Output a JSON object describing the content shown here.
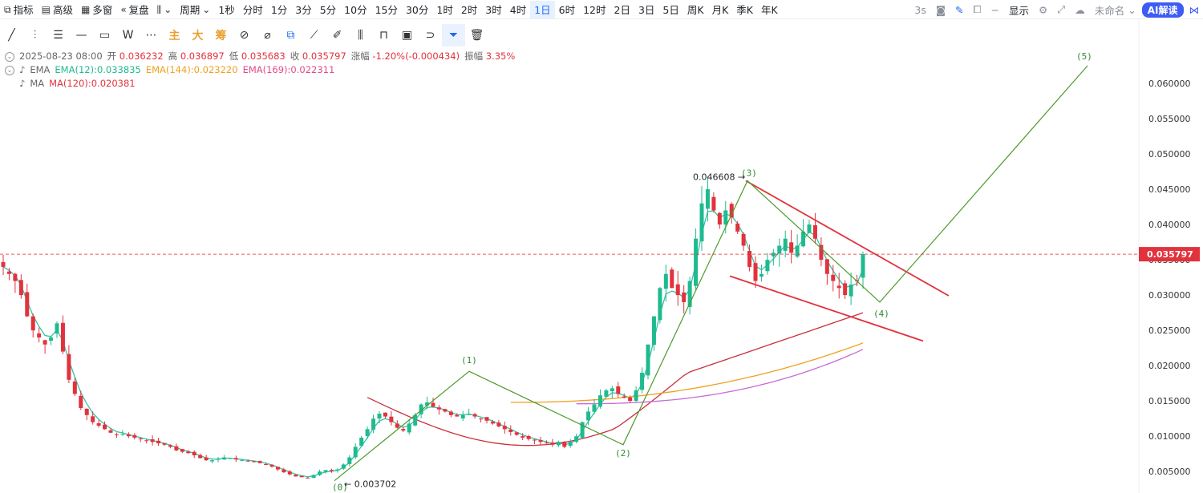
{
  "toolbar": {
    "indicators": "指标",
    "advanced": "高级",
    "multi_window": "多窗",
    "replay": "复盘",
    "period": "周期",
    "periods": [
      "1秒",
      "分时",
      "1分",
      "3分",
      "5分",
      "10分",
      "15分",
      "30分",
      "1时",
      "2时",
      "3时",
      "4时",
      "1日",
      "6时",
      "12时",
      "2日",
      "3日",
      "5日",
      "周K",
      "月K",
      "季K",
      "年K"
    ],
    "active_period": "1日",
    "refresh": "3s",
    "display": "显示",
    "unnamed": "未命名",
    "ai": "AI解读"
  },
  "drawtools": {
    "main": "主",
    "big": "大",
    "chips": "筹"
  },
  "info": {
    "date": "2025-08-23 08:00",
    "open_label": "开",
    "open": "0.036232",
    "high_label": "高",
    "high": "0.036897",
    "low_label": "低",
    "low": "0.035683",
    "close_label": "收",
    "close": "0.035797",
    "change_label": "涨幅",
    "change": "-1.20%(-0.000434)",
    "amp_label": "振幅",
    "amp": "3.35%",
    "ema_label": "EMA",
    "ema12": "EMA(12):0.033835",
    "ema144": "EMA(144):0.023220",
    "ema169": "EMA(169):0.022311",
    "ma_label": "MA",
    "ma120": "MA(120):0.020381"
  },
  "colors": {
    "up": "#1fba8f",
    "down": "#e2323c",
    "ema12": "#35c3a6",
    "ema144": "#f0a020",
    "ema169": "#c86ad8",
    "ma120": "#c8323c",
    "wave": "#4c9a2a",
    "channel": "#e2323c",
    "price_tag": "#e2323c"
  },
  "chart_data": {
    "type": "candlestick",
    "ylim": [
      0.0023,
      0.065
    ],
    "yticks": [
      "0.060000",
      "0.055000",
      "0.050000",
      "0.045000",
      "0.040000",
      "0.035000",
      "0.030000",
      "0.025000",
      "0.020000",
      "0.015000",
      "0.010000",
      "0.005000"
    ],
    "current_price": "0.035797",
    "high_annotation": "0.046608",
    "low_annotation": "0.003702",
    "close_series": [
      0.034,
      0.033,
      0.032,
      0.03,
      0.027,
      0.025,
      0.024,
      0.023,
      0.024,
      0.026,
      0.022,
      0.018,
      0.016,
      0.014,
      0.013,
      0.012,
      0.0115,
      0.011,
      0.0105,
      0.0102,
      0.0103,
      0.01,
      0.0098,
      0.0096,
      0.0094,
      0.0092,
      0.009,
      0.0088,
      0.0085,
      0.008,
      0.0078,
      0.0076,
      0.0073,
      0.0069,
      0.0066,
      0.0066,
      0.0068,
      0.007,
      0.0069,
      0.0067,
      0.0066,
      0.0065,
      0.0064,
      0.0062,
      0.006,
      0.0057,
      0.0053,
      0.0049,
      0.0046,
      0.0043,
      0.0042,
      0.0041,
      0.0045,
      0.005,
      0.0052,
      0.0051,
      0.0053,
      0.006,
      0.007,
      0.0085,
      0.0098,
      0.011,
      0.0125,
      0.0132,
      0.0128,
      0.012,
      0.0112,
      0.0108,
      0.0118,
      0.013,
      0.0145,
      0.0148,
      0.0142,
      0.0138,
      0.0135,
      0.013,
      0.0128,
      0.013,
      0.0132,
      0.0128,
      0.0125,
      0.0122,
      0.0118,
      0.0114,
      0.011,
      0.0106,
      0.0102,
      0.0098,
      0.0096,
      0.0094,
      0.0092,
      0.009,
      0.0088,
      0.0092,
      0.0085,
      0.0092,
      0.01,
      0.012,
      0.0135,
      0.0145,
      0.0158,
      0.0165,
      0.0168,
      0.016,
      0.0155,
      0.015,
      0.0165,
      0.019,
      0.023,
      0.027,
      0.031,
      0.033,
      0.031,
      0.03,
      0.029,
      0.032,
      0.038,
      0.043,
      0.045,
      0.042,
      0.04,
      0.042,
      0.041,
      0.039,
      0.037,
      0.034,
      0.032,
      0.033,
      0.035,
      0.036,
      0.037,
      0.038,
      0.036,
      0.037,
      0.039,
      0.04,
      0.038,
      0.035,
      0.033,
      0.032,
      0.031,
      0.03,
      0.0315,
      0.032,
      0.0358
    ],
    "ema12_end": 0.033835,
    "ema144_end": 0.02322,
    "ema169_end": 0.022311,
    "ma120_end": 0.020381,
    "waves": [
      {
        "label": "(0)",
        "price": 0.0037
      },
      {
        "label": "(1)",
        "price": 0.0192
      },
      {
        "label": "(2)",
        "price": 0.0088
      },
      {
        "label": "(3)",
        "price": 0.0462
      },
      {
        "label": "(4)",
        "price": 0.029
      },
      {
        "label": "(5)",
        "price": 0.0625
      }
    ]
  }
}
